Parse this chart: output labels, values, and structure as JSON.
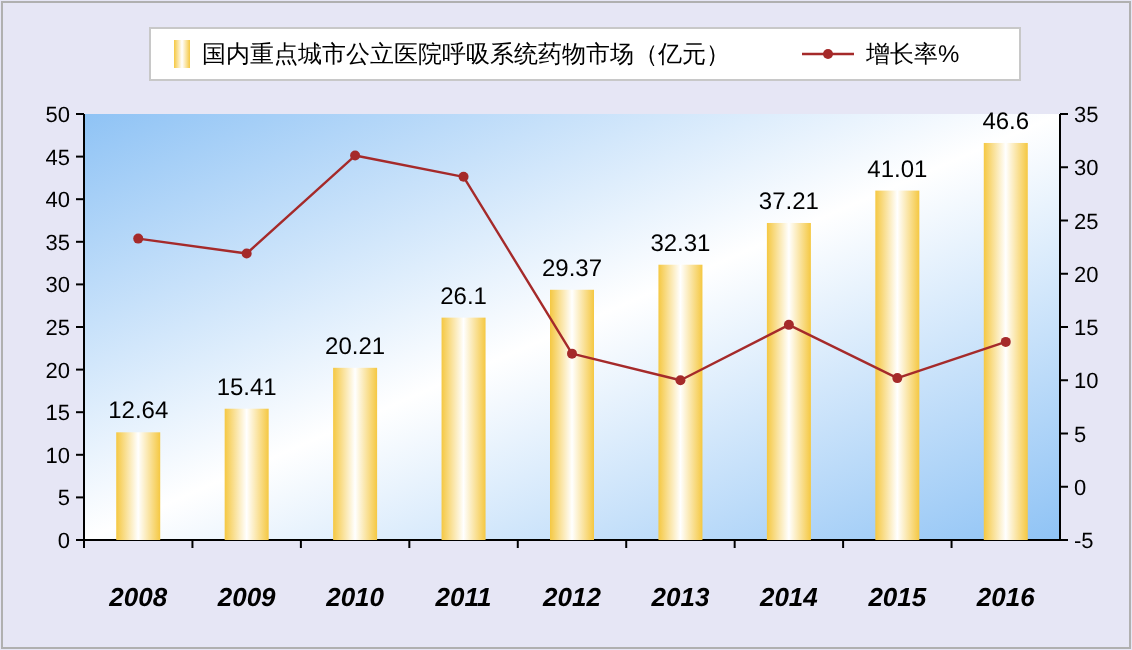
{
  "chart_data": {
    "type": "bar",
    "categories": [
      "2008",
      "2009",
      "2010",
      "2011",
      "2012",
      "2013",
      "2014",
      "2015",
      "2016"
    ],
    "series": [
      {
        "name": "国内重点城市公立医院呼吸系统药物市场（亿元）",
        "color": "#f5c842",
        "values": [
          12.64,
          15.41,
          20.21,
          26.1,
          29.37,
          32.31,
          37.21,
          41.01,
          46.6
        ],
        "value_labels": [
          "12.64",
          "15.41",
          "20.21",
          "26.1",
          "29.37",
          "32.31",
          "37.21",
          "41.01",
          "46.6"
        ]
      },
      {
        "name": "增长率%",
        "type": "line",
        "axis": "y2",
        "color": "#a52a2a",
        "marker": "circle",
        "values": [
          23.3,
          21.9,
          31.1,
          29.1,
          12.5,
          10.0,
          15.2,
          10.2,
          13.6
        ]
      }
    ],
    "ylim": [
      0,
      50
    ],
    "yticks": [
      0,
      5,
      10,
      15,
      20,
      25,
      30,
      35,
      40,
      45,
      50
    ],
    "y2lim": [
      -5,
      35
    ],
    "y2ticks": [
      -5,
      0,
      5,
      10,
      15,
      20,
      25,
      30,
      35
    ],
    "grid": false,
    "legend": "top"
  }
}
